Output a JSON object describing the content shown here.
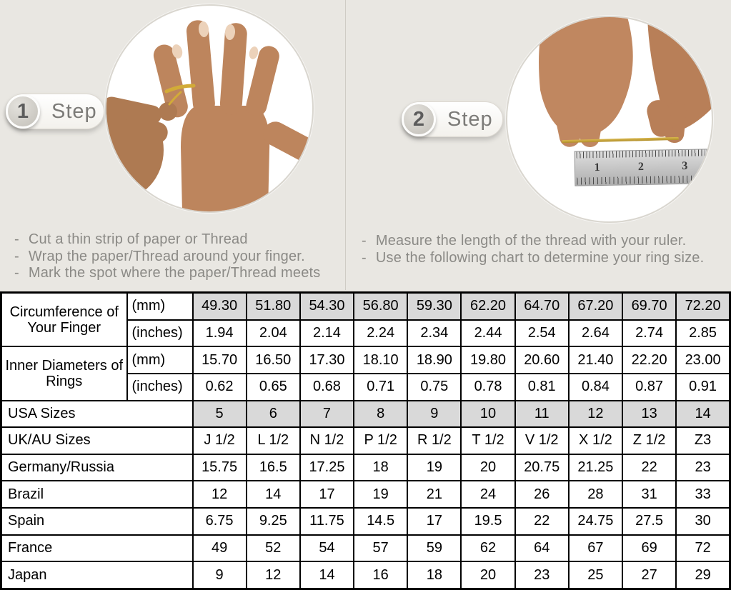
{
  "steps": [
    {
      "number": "1",
      "label": "Step",
      "bullet": "-",
      "instructions": [
        "Cut a thin strip of paper or Thread",
        "Wrap the paper/Thread around your finger.",
        "Mark the spot where the paper/Thread meets"
      ]
    },
    {
      "number": "2",
      "label": "Step",
      "bullet": "-",
      "instructions": [
        "Measure the length of the thread with your ruler.",
        "Use the following chart to determine your ring size."
      ]
    }
  ],
  "photos": {
    "step1": {
      "description": "hand with thread wrapped around finger"
    },
    "step2": {
      "description": "hands measuring thread length with ruler",
      "ruler_numbers": [
        "1",
        "2",
        "3"
      ]
    }
  },
  "table": {
    "groups": [
      {
        "label": "Circumference of Your Finger",
        "rows": [
          {
            "unit": "(mm)",
            "shaded": true,
            "values": [
              "49.30",
              "51.80",
              "54.30",
              "56.80",
              "59.30",
              "62.20",
              "64.70",
              "67.20",
              "69.70",
              "72.20"
            ]
          },
          {
            "unit": "(inches)",
            "shaded": false,
            "values": [
              "1.94",
              "2.04",
              "2.14",
              "2.24",
              "2.34",
              "2.44",
              "2.54",
              "2.64",
              "2.74",
              "2.85"
            ]
          }
        ]
      },
      {
        "label": "Inner Diameters of Rings",
        "rows": [
          {
            "unit": "(mm)",
            "shaded": false,
            "values": [
              "15.70",
              "16.50",
              "17.30",
              "18.10",
              "18.90",
              "19.80",
              "20.60",
              "21.40",
              "22.20",
              "23.00"
            ]
          },
          {
            "unit": "(inches)",
            "shaded": false,
            "values": [
              "0.62",
              "0.65",
              "0.68",
              "0.71",
              "0.75",
              "0.78",
              "0.81",
              "0.84",
              "0.87",
              "0.91"
            ]
          }
        ]
      }
    ],
    "size_rows": [
      {
        "label": "USA Sizes",
        "shaded": true,
        "values": [
          "5",
          "6",
          "7",
          "8",
          "9",
          "10",
          "11",
          "12",
          "13",
          "14"
        ]
      },
      {
        "label": "UK/AU Sizes",
        "shaded": false,
        "values": [
          "J 1/2",
          "L 1/2",
          "N 1/2",
          "P 1/2",
          "R 1/2",
          "T 1/2",
          "V 1/2",
          "X 1/2",
          "Z 1/2",
          "Z3"
        ]
      },
      {
        "label": "Germany/Russia",
        "shaded": false,
        "values": [
          "15.75",
          "16.5",
          "17.25",
          "18",
          "19",
          "20",
          "20.75",
          "21.25",
          "22",
          "23"
        ]
      },
      {
        "label": "Brazil",
        "shaded": false,
        "values": [
          "12",
          "14",
          "17",
          "19",
          "21",
          "24",
          "26",
          "28",
          "31",
          "33"
        ]
      },
      {
        "label": "Spain",
        "shaded": false,
        "values": [
          "6.75",
          "9.25",
          "11.75",
          "14.5",
          "17",
          "19.5",
          "22",
          "24.75",
          "27.5",
          "30"
        ]
      },
      {
        "label": "France",
        "shaded": false,
        "values": [
          "49",
          "52",
          "54",
          "57",
          "59",
          "62",
          "64",
          "67",
          "69",
          "72"
        ]
      },
      {
        "label": "Japan",
        "shaded": false,
        "values": [
          "9",
          "12",
          "14",
          "16",
          "18",
          "20",
          "23",
          "25",
          "27",
          "29"
        ]
      }
    ]
  },
  "colors": {
    "page_background": "#e9e7e2",
    "shaded_cell": "#d9d9d9",
    "table_border": "#000000",
    "instruction_text": "#8b8a86",
    "thread_gold": "#c9a437"
  }
}
